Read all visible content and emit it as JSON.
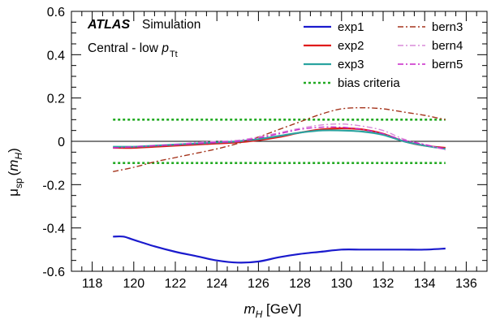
{
  "chart_data": {
    "type": "line",
    "xlabel": {
      "main": "m",
      "sub": "H",
      "unit": " [GeV]"
    },
    "ylabel": {
      "main": "μ",
      "sub": "sp",
      "arg_main": "m",
      "arg_sub": "H"
    },
    "xlim": [
      117,
      137
    ],
    "ylim": [
      -0.6,
      0.6
    ],
    "x_ticks": [
      "118",
      "120",
      "122",
      "124",
      "126",
      "128",
      "130",
      "132",
      "134",
      "136"
    ],
    "y_ticks": [
      "-0.6",
      "-0.4",
      "-0.2",
      "0",
      "0.2",
      "0.4",
      "0.6"
    ],
    "annotations": {
      "experiment": "ATLAS",
      "label": "Simulation",
      "category_prefix": "Central - low ",
      "category_var": "p",
      "category_sub": "Tt"
    },
    "reference_line": 0,
    "series": [
      {
        "name": "exp1",
        "color": "#1a1acd",
        "style": "solid",
        "x": [
          119,
          119.5,
          120,
          121,
          122,
          123,
          124,
          125,
          126,
          127,
          128,
          129,
          130,
          131,
          132,
          133,
          134,
          135
        ],
        "y": [
          -0.44,
          -0.44,
          -0.455,
          -0.485,
          -0.51,
          -0.53,
          -0.55,
          -0.56,
          -0.555,
          -0.535,
          -0.52,
          -0.51,
          -0.5,
          -0.5,
          -0.5,
          -0.5,
          -0.5,
          -0.495
        ]
      },
      {
        "name": "exp2",
        "color": "#e01a1a",
        "style": "solid",
        "x": [
          119,
          120,
          121,
          122,
          123,
          124,
          125,
          126,
          127,
          128,
          129,
          130,
          131,
          132,
          133,
          134,
          135
        ],
        "y": [
          -0.03,
          -0.03,
          -0.025,
          -0.02,
          -0.015,
          -0.01,
          -0.005,
          0.005,
          0.02,
          0.04,
          0.055,
          0.06,
          0.055,
          0.035,
          0.0,
          -0.02,
          -0.03
        ]
      },
      {
        "name": "exp3",
        "color": "#2aa3a0",
        "style": "solid",
        "x": [
          119,
          120,
          121,
          122,
          123,
          124,
          125,
          126,
          127,
          128,
          129,
          130,
          131,
          132,
          133,
          134,
          135
        ],
        "y": [
          -0.025,
          -0.025,
          -0.02,
          -0.015,
          -0.01,
          -0.005,
          0.0,
          0.01,
          0.025,
          0.04,
          0.05,
          0.05,
          0.045,
          0.03,
          0.0,
          -0.02,
          -0.035
        ]
      },
      {
        "name": "bias criteria",
        "color": "#22aa22",
        "style": "dotted",
        "x": [
          119,
          135
        ],
        "y": [
          0.1,
          0.1
        ]
      },
      {
        "name": "bias criteria",
        "color": "#22aa22",
        "style": "dotted",
        "x": [
          119,
          135
        ],
        "y": [
          -0.1,
          -0.1
        ]
      },
      {
        "name": "bern3",
        "color": "#a5351d",
        "style": "dashdot",
        "x": [
          119,
          120,
          121,
          122,
          123,
          124,
          125,
          126,
          127,
          128,
          129,
          130,
          131,
          132,
          133,
          134,
          135
        ],
        "y": [
          -0.14,
          -0.12,
          -0.095,
          -0.075,
          -0.055,
          -0.035,
          -0.01,
          0.02,
          0.055,
          0.09,
          0.125,
          0.15,
          0.155,
          0.15,
          0.135,
          0.12,
          0.1
        ]
      },
      {
        "name": "bern4",
        "color": "#d98ad9",
        "style": "dashdot",
        "x": [
          119,
          120,
          121,
          122,
          123,
          124,
          125,
          126,
          127,
          128,
          129,
          130,
          131,
          132,
          133,
          134,
          135
        ],
        "y": [
          -0.03,
          -0.025,
          -0.02,
          -0.015,
          -0.005,
          0.0,
          0.005,
          0.02,
          0.04,
          0.06,
          0.075,
          0.08,
          0.07,
          0.05,
          0.01,
          -0.015,
          -0.04
        ]
      },
      {
        "name": "bern5",
        "color": "#c925c9",
        "style": "dashdot",
        "x": [
          119,
          120,
          121,
          122,
          123,
          124,
          125,
          126,
          127,
          128,
          129,
          130,
          131,
          132,
          133,
          134,
          135
        ],
        "y": [
          -0.03,
          -0.025,
          -0.02,
          -0.015,
          -0.01,
          -0.005,
          0.0,
          0.015,
          0.035,
          0.055,
          0.065,
          0.065,
          0.055,
          0.035,
          0.005,
          -0.015,
          -0.035
        ]
      }
    ],
    "legend": [
      {
        "label": "exp1",
        "color": "#1a1acd",
        "style": "solid"
      },
      {
        "label": "exp2",
        "color": "#e01a1a",
        "style": "solid"
      },
      {
        "label": "exp3",
        "color": "#2aa3a0",
        "style": "solid"
      },
      {
        "label": "bias criteria",
        "color": "#22aa22",
        "style": "dotted"
      },
      {
        "label": "bern3",
        "color": "#a5351d",
        "style": "dashdot"
      },
      {
        "label": "bern4",
        "color": "#d98ad9",
        "style": "dashdot"
      },
      {
        "label": "bern5",
        "color": "#c925c9",
        "style": "dashdot"
      }
    ],
    "legend_placement": "top-right",
    "grid": false
  }
}
